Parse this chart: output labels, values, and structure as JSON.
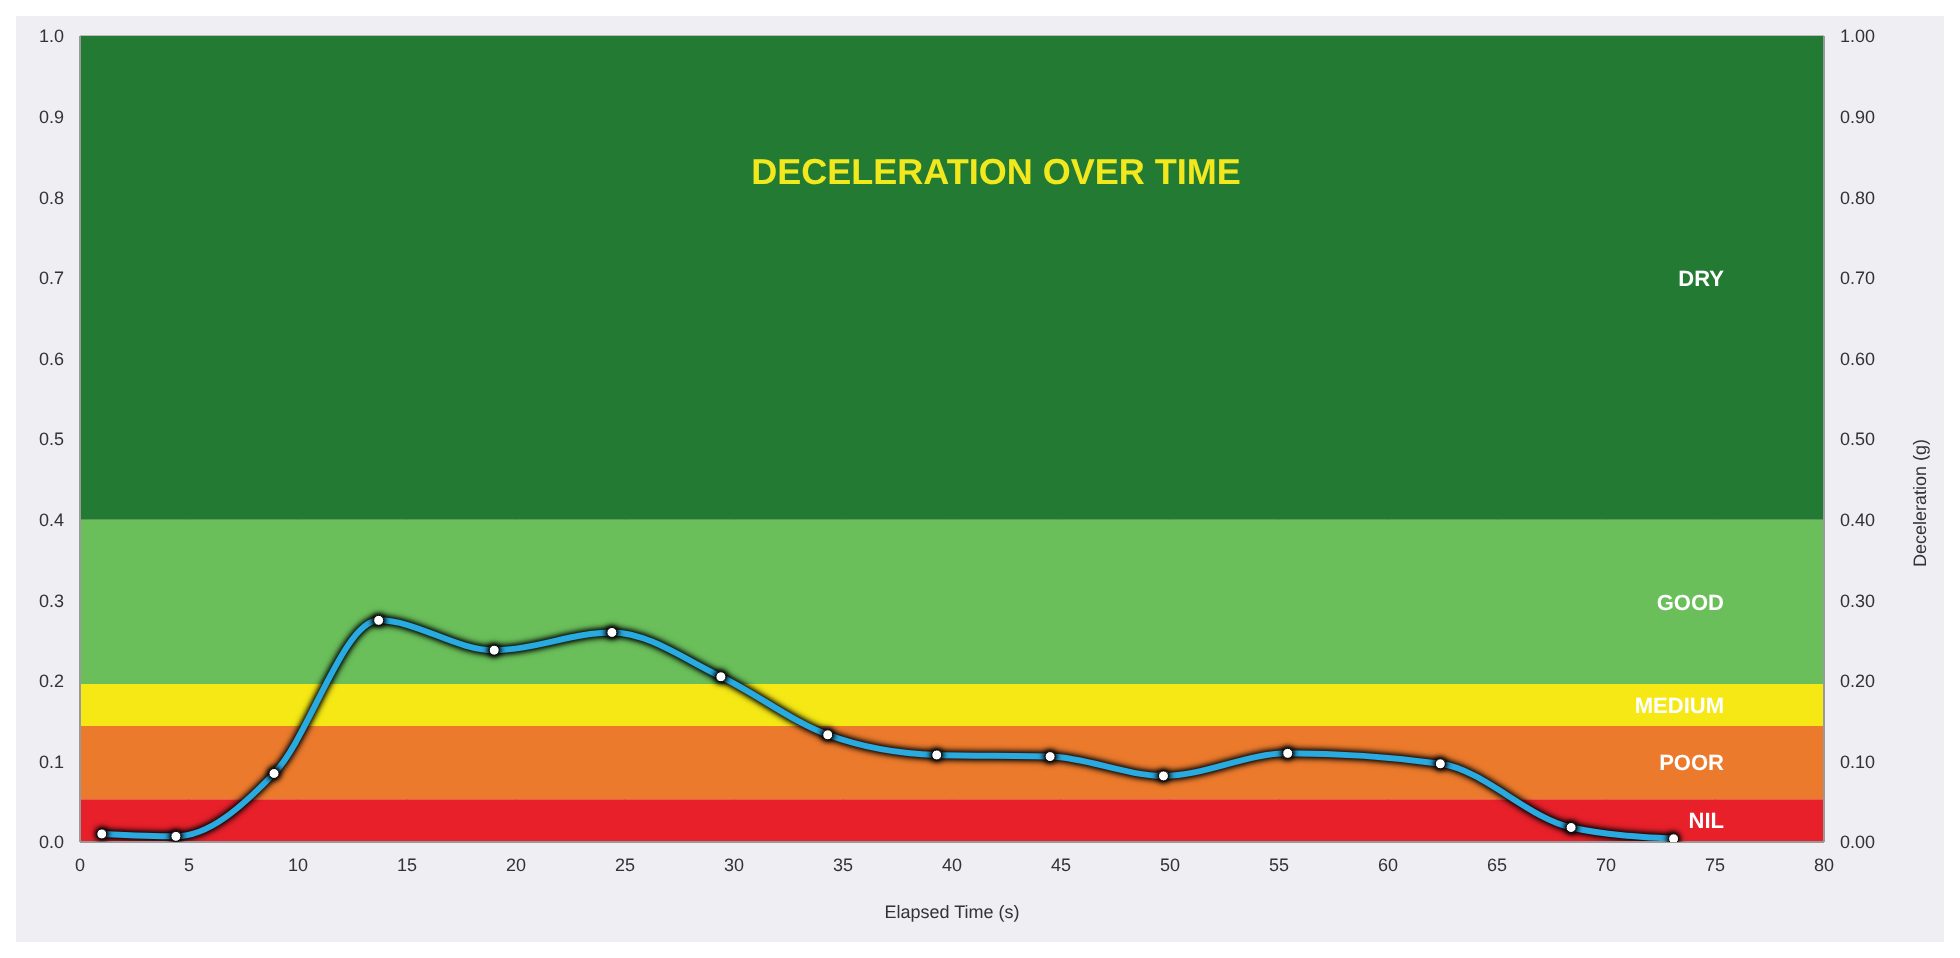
{
  "chart_data": {
    "type": "line",
    "title": "DECELERATION OVER TIME",
    "xlabel": "Elapsed Time (s)",
    "y2label": "Deceleration (g)",
    "x": [
      1.0,
      4.4,
      8.9,
      13.7,
      19.0,
      24.4,
      29.4,
      34.3,
      39.3,
      44.5,
      49.7,
      55.4,
      62.4,
      68.4,
      73.1
    ],
    "series": [
      {
        "color": "#29abe2",
        "values": [
          0.01,
          0.007,
          0.085,
          0.275,
          0.238,
          0.26,
          0.205,
          0.133,
          0.108,
          0.106,
          0.082,
          0.11,
          0.097,
          0.018,
          0.004
        ]
      }
    ],
    "xlim": [
      0,
      80
    ],
    "xticks": [
      0,
      5,
      10,
      15,
      20,
      25,
      30,
      35,
      40,
      45,
      50,
      55,
      60,
      65,
      70,
      75,
      80
    ],
    "ylim": [
      0,
      1
    ],
    "yticks": [
      {
        "value": 0,
        "label": "0.0"
      },
      0.1,
      0.2,
      0.3,
      0.4,
      0.5,
      0.6,
      0.7,
      0.8,
      0.9,
      {
        "value": 1,
        "label": "1.0"
      }
    ],
    "y2lim": [
      0,
      1
    ],
    "y2ticks": [
      {
        "value": 0,
        "label": "0.00"
      },
      {
        "value": 0.1,
        "label": "0.10"
      },
      {
        "value": 0.2,
        "label": "0.20"
      },
      {
        "value": 0.3,
        "label": "0.30"
      },
      {
        "value": 0.4,
        "label": "0.40"
      },
      {
        "value": 0.5,
        "label": "0.50"
      },
      {
        "value": 0.6,
        "label": "0.60"
      },
      {
        "value": 0.7,
        "label": "0.70"
      },
      {
        "value": 0.8,
        "label": "0.80"
      },
      {
        "value": 0.9,
        "label": "0.90"
      },
      {
        "value": 1,
        "label": "1.00"
      }
    ],
    "bands": [
      {
        "axis": "y",
        "from": 0,
        "to": 0.053,
        "label": "NIL",
        "color": "#e8202a"
      },
      {
        "axis": "y",
        "from": 0.053,
        "to": 0.144,
        "label": "POOR",
        "color": "#ec7a2c"
      },
      {
        "axis": "y",
        "from": 0.144,
        "to": 0.196,
        "label": "MEDIUM",
        "color": "#f5e815"
      },
      {
        "axis": "y",
        "from": 0.196,
        "to": 0.4,
        "label": "GOOD",
        "color": "#6abf5a"
      },
      {
        "axis": "y",
        "from": 0.4,
        "to": 1,
        "label": "DRY",
        "color": "#237a33"
      }
    ],
    "grid": true,
    "marker": "circle",
    "line_style": "solid"
  }
}
